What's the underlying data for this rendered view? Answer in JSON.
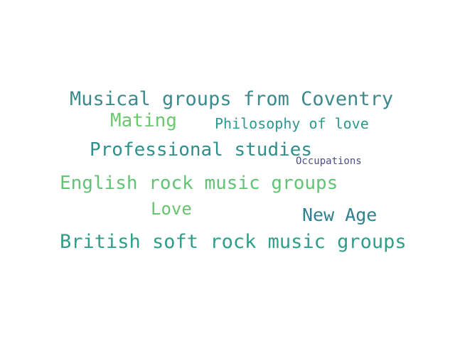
{
  "word_cloud": {
    "words": [
      {
        "id": "coventry",
        "text": "Musical groups from Coventry",
        "color": "#3a8a8e"
      },
      {
        "id": "mating",
        "text": "Mating",
        "color": "#6cc870"
      },
      {
        "id": "philosophy",
        "text": "Philosophy of love",
        "color": "#2a9a8e"
      },
      {
        "id": "professional",
        "text": "Professional studies",
        "color": "#2f8f8c"
      },
      {
        "id": "occupations",
        "text": "Occupations",
        "color": "#4a4f8c"
      },
      {
        "id": "english",
        "text": "English rock music groups",
        "color": "#62c374"
      },
      {
        "id": "love",
        "text": "Love",
        "color": "#66c46e"
      },
      {
        "id": "newage",
        "text": "New Age",
        "color": "#2f8090"
      },
      {
        "id": "british",
        "text": "British soft rock music groups",
        "color": "#2f9e89"
      }
    ]
  }
}
